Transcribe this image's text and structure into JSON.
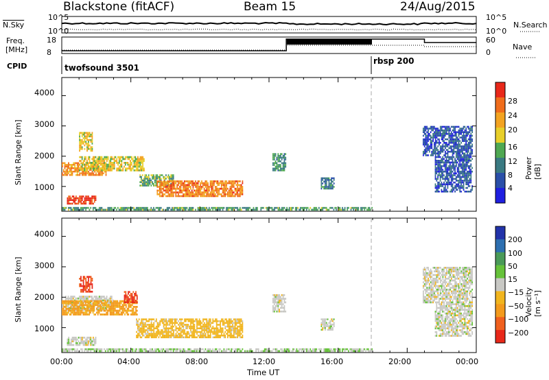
{
  "header": {
    "title": "Blackstone (fitACF)",
    "beam": "Beam 15",
    "date": "24/Aug/2015"
  },
  "top_panels": {
    "nsky_label": "N.Sky",
    "nsearch_label": "N.Search",
    "noise_ticks_left": [
      "10^5",
      "10^0"
    ],
    "noise_ticks_right": [
      "10^5",
      "10^0"
    ],
    "freq_label_1": "Freq.",
    "freq_label_2": "[MHz]",
    "freq_ticks": [
      "18",
      "8"
    ],
    "nave_ticks": [
      "60",
      "0"
    ],
    "nave_label": "Nave",
    "cpid_label": "CPID",
    "cpid_segments": [
      {
        "name": "twofsound 3501",
        "start_hour": 0
      },
      {
        "name": "rbsp 200",
        "start_hour": 18
      }
    ]
  },
  "axes": {
    "ylabel": "Slant Range [km]",
    "yticks": [
      "1000",
      "2000",
      "3000",
      "4000"
    ],
    "xticks": [
      "00:00",
      "04:00",
      "08:00",
      "12:00",
      "16:00",
      "20:00",
      "00:00"
    ],
    "xlabel": "Time UT"
  },
  "power_colorbar": {
    "label": "Power [dB]",
    "ticks": [
      "4",
      "8",
      "12",
      "16",
      "20",
      "24",
      "28"
    ],
    "colors": [
      "#1f1fe0",
      "#2a4fa8",
      "#3a7a82",
      "#4fa852",
      "#e8cf2a",
      "#f3a321",
      "#f06d1c",
      "#e8281a"
    ]
  },
  "velocity_colorbar": {
    "label": "Velocity [m s⁻¹]",
    "ticks": [
      "200",
      "100",
      "50",
      "15",
      "−15",
      "−50",
      "−100",
      "−200"
    ],
    "colors": [
      "#2233aa",
      "#2d6fb0",
      "#4a9a58",
      "#66c23a",
      "#c8c8c4",
      "#f1b51e",
      "#f39a1c",
      "#f0601e",
      "#e8281a"
    ]
  },
  "chart_data": [
    {
      "type": "heatmap",
      "panel": "power",
      "x_unit": "hour UT",
      "y_unit": "km",
      "xlim": [
        0,
        24
      ],
      "ylim": [
        180,
        4600
      ],
      "cbar_range": [
        0,
        30
      ],
      "regions": [
        {
          "t0": 0.0,
          "t1": 2.6,
          "r0": 1350,
          "r1": 1800,
          "v": 22
        },
        {
          "t0": 1.0,
          "t1": 4.8,
          "r0": 1500,
          "r1": 2000,
          "v": 17
        },
        {
          "t0": 1.0,
          "t1": 1.8,
          "r0": 2150,
          "r1": 2800,
          "v": 18
        },
        {
          "t0": 0.3,
          "t1": 2.0,
          "r0": 400,
          "r1": 700,
          "v": 27
        },
        {
          "t0": 4.5,
          "t1": 6.5,
          "r0": 1000,
          "r1": 1400,
          "v": 13
        },
        {
          "t0": 5.5,
          "t1": 10.5,
          "r0": 650,
          "r1": 1200,
          "v": 23
        },
        {
          "t0": 12.2,
          "t1": 13.0,
          "r0": 1500,
          "r1": 2100,
          "v": 11
        },
        {
          "t0": 15.0,
          "t1": 15.8,
          "r0": 900,
          "r1": 1300,
          "v": 9
        },
        {
          "t0": 20.9,
          "t1": 23.8,
          "r0": 2000,
          "r1": 3000,
          "v": 6
        },
        {
          "t0": 21.6,
          "t1": 23.8,
          "r0": 800,
          "r1": 2000,
          "v": 6
        },
        {
          "t0": 0.0,
          "t1": 18.0,
          "r0": 200,
          "r1": 320,
          "v": 12
        }
      ]
    },
    {
      "type": "heatmap",
      "panel": "velocity",
      "x_unit": "hour UT",
      "y_unit": "km",
      "xlim": [
        0,
        24
      ],
      "ylim": [
        180,
        4600
      ],
      "cbar_range": [
        -250,
        250
      ],
      "regions": [
        {
          "t0": 0.2,
          "t1": 3.0,
          "r0": 1550,
          "r1": 2050,
          "v": 0
        },
        {
          "t0": 0.0,
          "t1": 4.4,
          "r0": 1400,
          "r1": 1900,
          "v": -60
        },
        {
          "t0": 1.0,
          "t1": 1.8,
          "r0": 2150,
          "r1": 2700,
          "v": -200
        },
        {
          "t0": 3.6,
          "t1": 4.4,
          "r0": 1800,
          "r1": 2200,
          "v": -200
        },
        {
          "t0": 0.3,
          "t1": 2.0,
          "r0": 400,
          "r1": 700,
          "v": 0
        },
        {
          "t0": 4.3,
          "t1": 10.5,
          "r0": 650,
          "r1": 1300,
          "v": -30
        },
        {
          "t0": 12.2,
          "t1": 13.0,
          "r0": 1500,
          "r1": 2100,
          "v": 0
        },
        {
          "t0": 15.0,
          "t1": 15.8,
          "r0": 900,
          "r1": 1300,
          "v": 0
        },
        {
          "t0": 20.9,
          "t1": 23.8,
          "r0": 1800,
          "r1": 3000,
          "v": 0
        },
        {
          "t0": 21.6,
          "t1": 23.8,
          "r0": 700,
          "r1": 1800,
          "v": 0
        },
        {
          "t0": 0.0,
          "t1": 18.0,
          "r0": 200,
          "r1": 320,
          "v": 10
        }
      ]
    }
  ]
}
